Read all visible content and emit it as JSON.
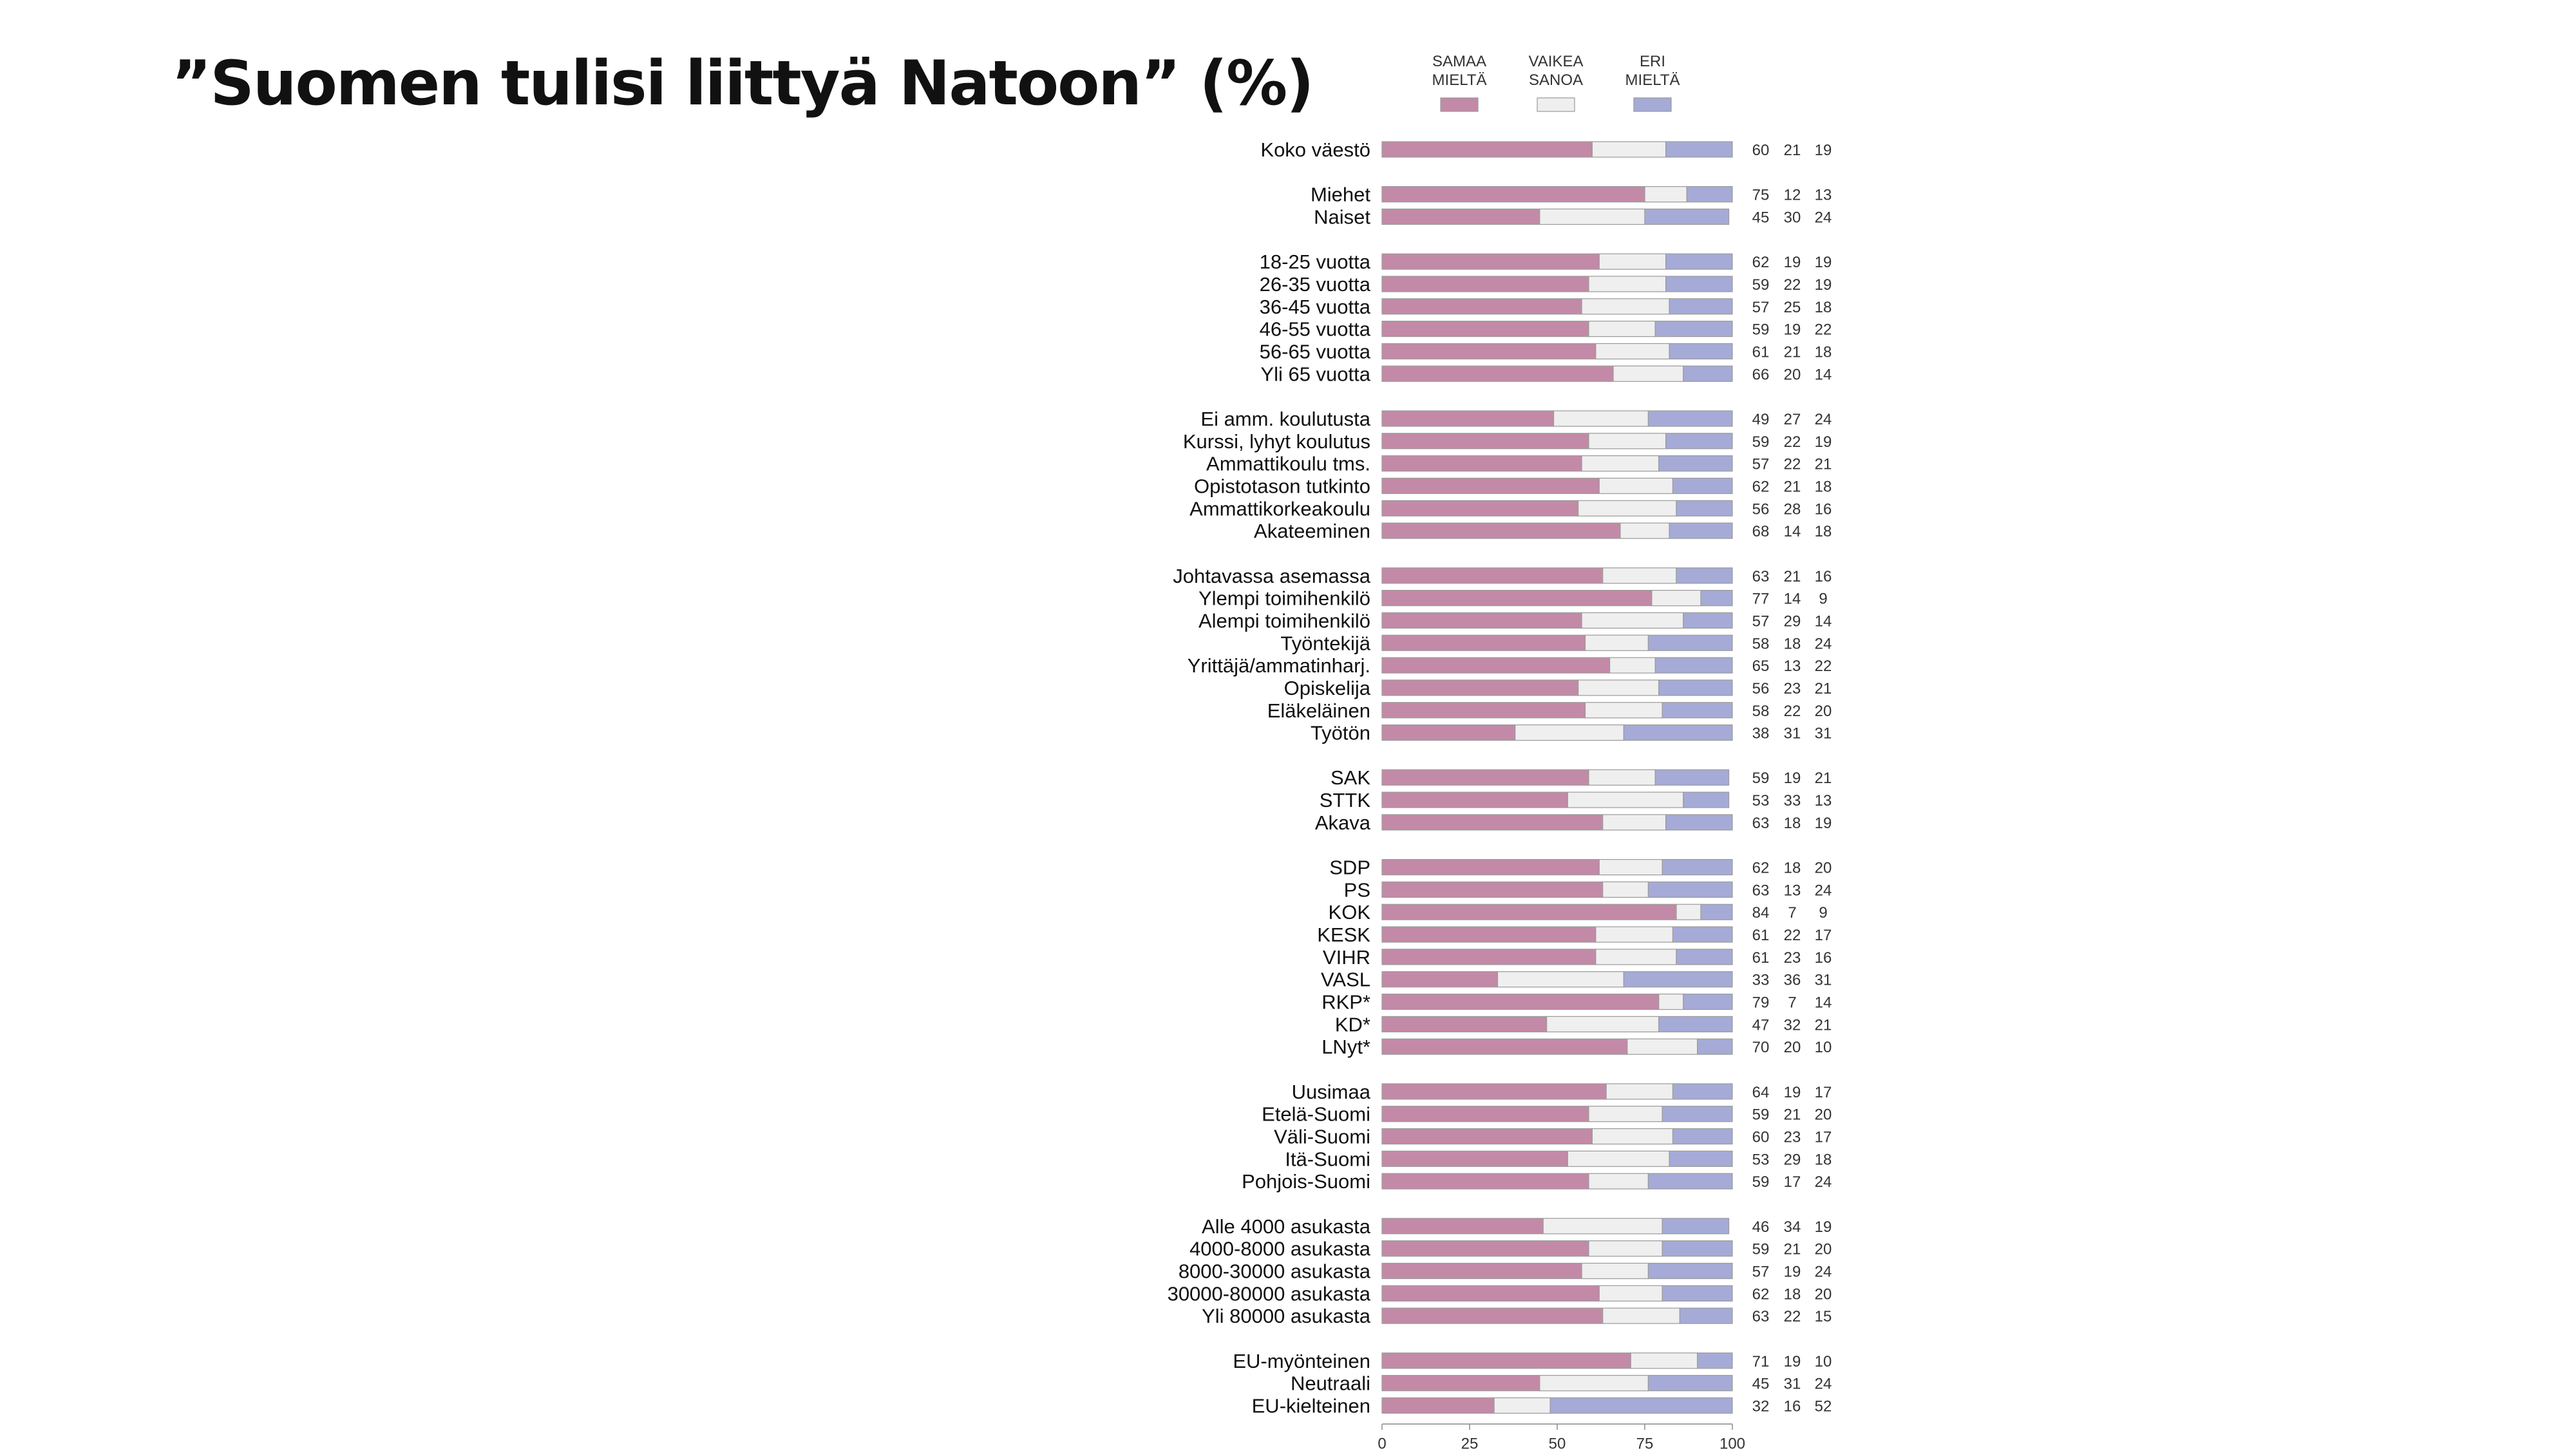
{
  "title": "”Suomen tulisi liittyä Natoon” (%)",
  "chart_data": {
    "type": "bar",
    "stacked": true,
    "orientation": "horizontal",
    "xlim": [
      0,
      100
    ],
    "x_ticks": [
      "0",
      "25",
      "50",
      "75",
      "100"
    ],
    "legend_position": "top",
    "grid": false,
    "legend": [
      {
        "lines": [
          "SAMAA",
          "MIELTÄ"
        ],
        "color": "#c38aa7"
      },
      {
        "lines": [
          "VAIKEA",
          "SANOA"
        ],
        "color": "#efefef"
      },
      {
        "lines": [
          "ERI",
          "MIELTÄ"
        ],
        "color": "#a5abd6"
      }
    ],
    "groups": [
      {
        "rows": [
          {
            "label": "Koko väestö",
            "values": [
              60,
              21,
              19
            ]
          }
        ]
      },
      {
        "rows": [
          {
            "label": "Miehet",
            "values": [
              75,
              12,
              13
            ]
          },
          {
            "label": "Naiset",
            "values": [
              45,
              30,
              24
            ]
          }
        ]
      },
      {
        "rows": [
          {
            "label": "18-25 vuotta",
            "values": [
              62,
              19,
              19
            ]
          },
          {
            "label": "26-35 vuotta",
            "values": [
              59,
              22,
              19
            ]
          },
          {
            "label": "36-45 vuotta",
            "values": [
              57,
              25,
              18
            ]
          },
          {
            "label": "46-55 vuotta",
            "values": [
              59,
              19,
              22
            ]
          },
          {
            "label": "56-65 vuotta",
            "values": [
              61,
              21,
              18
            ]
          },
          {
            "label": "Yli 65 vuotta",
            "values": [
              66,
              20,
              14
            ]
          }
        ]
      },
      {
        "rows": [
          {
            "label": "Ei amm. koulutusta",
            "values": [
              49,
              27,
              24
            ]
          },
          {
            "label": "Kurssi, lyhyt koulutus",
            "values": [
              59,
              22,
              19
            ]
          },
          {
            "label": "Ammattikoulu tms.",
            "values": [
              57,
              22,
              21
            ]
          },
          {
            "label": "Opistotason tutkinto",
            "values": [
              62,
              21,
              18
            ]
          },
          {
            "label": "Ammattikorkeakoulu",
            "values": [
              56,
              28,
              16
            ]
          },
          {
            "label": "Akateeminen",
            "values": [
              68,
              14,
              18
            ]
          }
        ]
      },
      {
        "rows": [
          {
            "label": "Johtavassa asemassa",
            "values": [
              63,
              21,
              16
            ]
          },
          {
            "label": "Ylempi toimihenkilö",
            "values": [
              77,
              14,
              9
            ]
          },
          {
            "label": "Alempi toimihenkilö",
            "values": [
              57,
              29,
              14
            ]
          },
          {
            "label": "Työntekijä",
            "values": [
              58,
              18,
              24
            ]
          },
          {
            "label": "Yrittäjä/ammatinharj.",
            "values": [
              65,
              13,
              22
            ]
          },
          {
            "label": "Opiskelija",
            "values": [
              56,
              23,
              21
            ]
          },
          {
            "label": "Eläkeläinen",
            "values": [
              58,
              22,
              20
            ]
          },
          {
            "label": "Työtön",
            "values": [
              38,
              31,
              31
            ]
          }
        ]
      },
      {
        "rows": [
          {
            "label": "SAK",
            "values": [
              59,
              19,
              21
            ]
          },
          {
            "label": "STTK",
            "values": [
              53,
              33,
              13
            ]
          },
          {
            "label": "Akava",
            "values": [
              63,
              18,
              19
            ]
          }
        ]
      },
      {
        "rows": [
          {
            "label": "SDP",
            "values": [
              62,
              18,
              20
            ]
          },
          {
            "label": "PS",
            "values": [
              63,
              13,
              24
            ]
          },
          {
            "label": "KOK",
            "values": [
              84,
              7,
              9
            ]
          },
          {
            "label": "KESK",
            "values": [
              61,
              22,
              17
            ]
          },
          {
            "label": "VIHR",
            "values": [
              61,
              23,
              16
            ]
          },
          {
            "label": "VASL",
            "values": [
              33,
              36,
              31
            ]
          },
          {
            "label": "RKP*",
            "values": [
              79,
              7,
              14
            ]
          },
          {
            "label": "KD*",
            "values": [
              47,
              32,
              21
            ]
          },
          {
            "label": "LNyt*",
            "values": [
              70,
              20,
              10
            ]
          }
        ]
      },
      {
        "rows": [
          {
            "label": "Uusimaa",
            "values": [
              64,
              19,
              17
            ]
          },
          {
            "label": "Etelä-Suomi",
            "values": [
              59,
              21,
              20
            ]
          },
          {
            "label": "Väli-Suomi",
            "values": [
              60,
              23,
              17
            ]
          },
          {
            "label": "Itä-Suomi",
            "values": [
              53,
              29,
              18
            ]
          },
          {
            "label": "Pohjois-Suomi",
            "values": [
              59,
              17,
              24
            ]
          }
        ]
      },
      {
        "rows": [
          {
            "label": "Alle 4000 asukasta",
            "values": [
              46,
              34,
              19
            ]
          },
          {
            "label": "4000-8000 asukasta",
            "values": [
              59,
              21,
              20
            ]
          },
          {
            "label": "8000-30000 asukasta",
            "values": [
              57,
              19,
              24
            ]
          },
          {
            "label": "30000-80000 asukasta",
            "values": [
              62,
              18,
              20
            ]
          },
          {
            "label": "Yli 80000 asukasta",
            "values": [
              63,
              22,
              15
            ]
          }
        ]
      },
      {
        "rows": [
          {
            "label": "EU-myönteinen",
            "values": [
              71,
              19,
              10
            ]
          },
          {
            "label": "Neutraali",
            "values": [
              45,
              31,
              24
            ]
          },
          {
            "label": "EU-kielteinen",
            "values": [
              32,
              16,
              52
            ]
          }
        ]
      }
    ]
  }
}
